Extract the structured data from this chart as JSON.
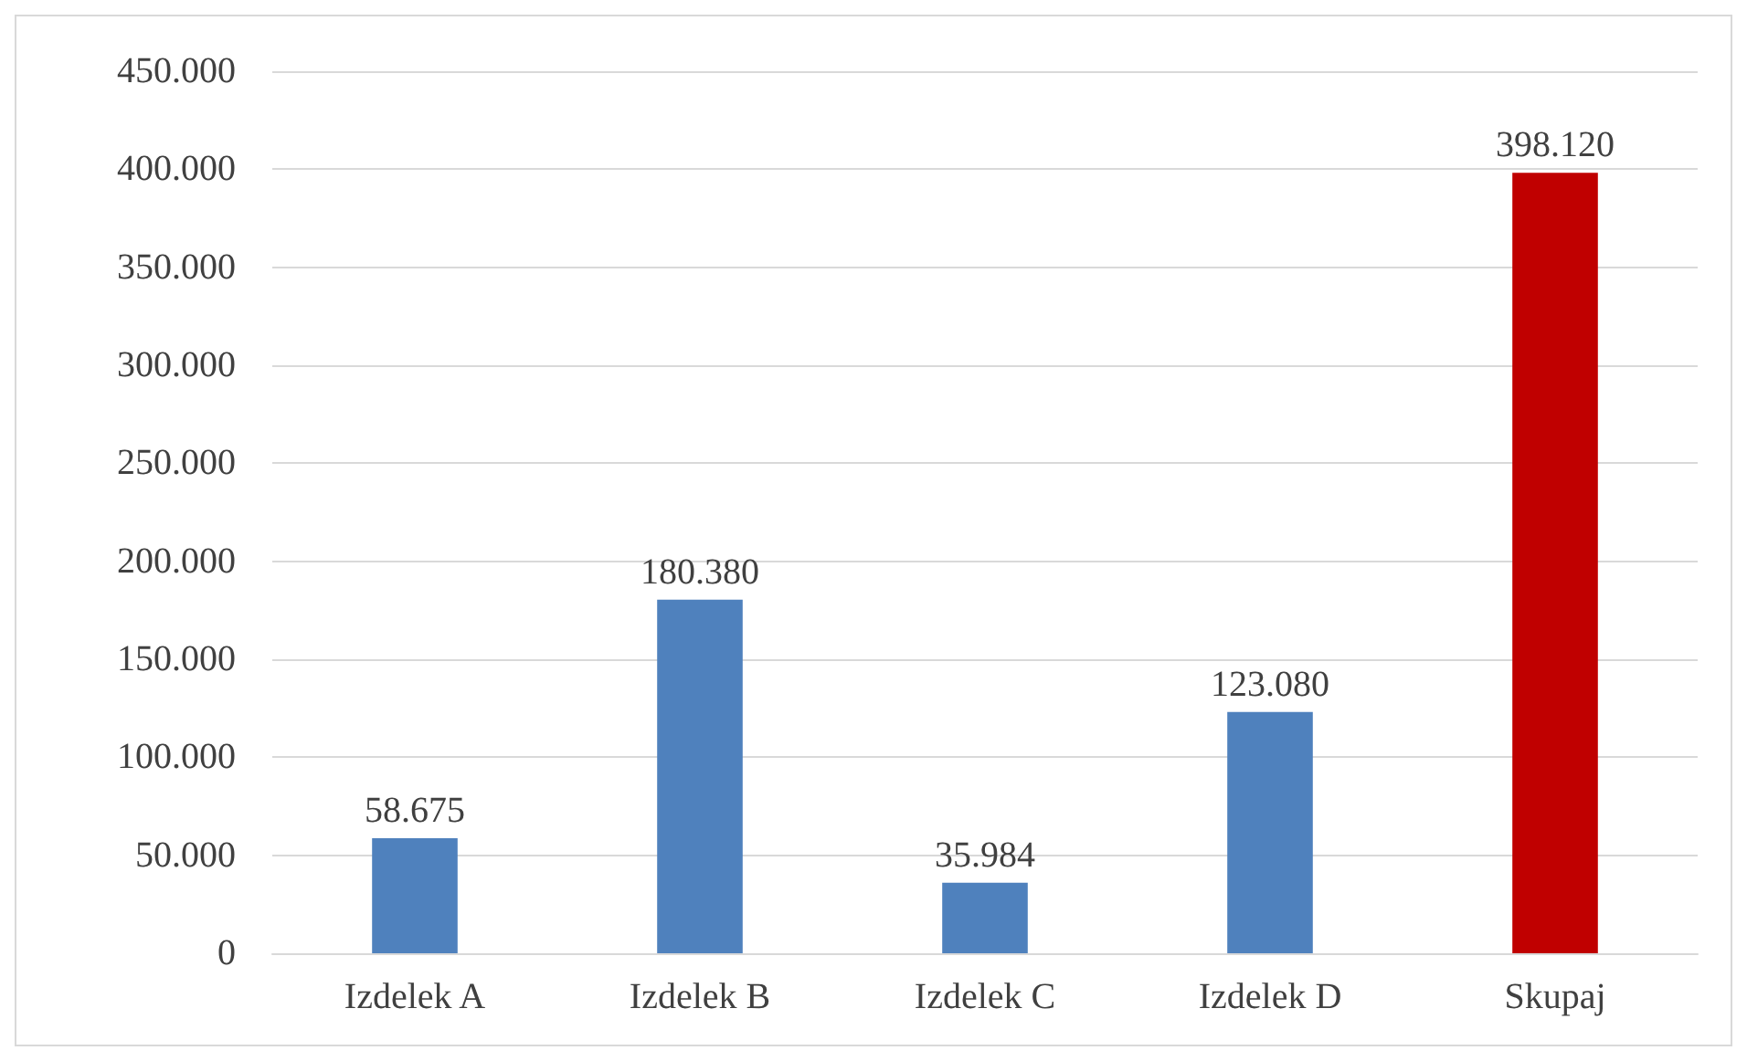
{
  "chart_data": {
    "type": "bar",
    "categories": [
      "Izdelek A",
      "Izdelek B",
      "Izdelek C",
      "Izdelek D",
      "Skupaj"
    ],
    "values": [
      58675,
      180380,
      35984,
      123080,
      398120
    ],
    "colors": [
      "#4f81bd",
      "#4f81bd",
      "#4f81bd",
      "#4f81bd",
      "#c00000"
    ],
    "value_labels": [
      "58.675",
      "180.380",
      "35.984",
      "123.080",
      "398.120"
    ],
    "ylim": [
      0,
      450000
    ],
    "yticks": [
      {
        "value": 0,
        "label": "0"
      },
      {
        "value": 50000,
        "label": "50.000"
      },
      {
        "value": 100000,
        "label": "100.000"
      },
      {
        "value": 150000,
        "label": "150.000"
      },
      {
        "value": 200000,
        "label": "200.000"
      },
      {
        "value": 250000,
        "label": "250.000"
      },
      {
        "value": 300000,
        "label": "300.000"
      },
      {
        "value": 350000,
        "label": "350.000"
      },
      {
        "value": 400000,
        "label": "400.000"
      },
      {
        "value": 450000,
        "label": "450.000"
      }
    ],
    "grid": "y"
  }
}
